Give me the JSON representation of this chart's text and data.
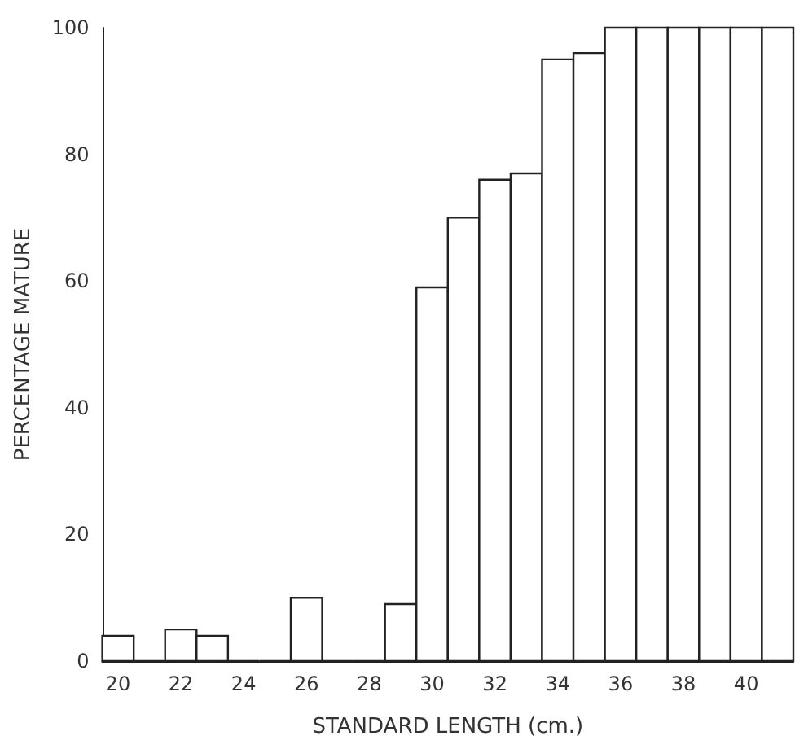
{
  "chart_data": {
    "type": "histogram",
    "xlabel": "STANDARD LENGTH (cm.)",
    "ylabel": "PERCENTAGE MATURE",
    "bins": [
      19.5,
      20.5,
      21.5,
      22.5,
      23.5,
      24.5,
      25.5,
      26.5,
      27.5,
      28.5,
      29.5,
      30.5,
      31.5,
      32.5,
      33.5,
      34.5,
      35.5,
      36.5,
      37.5,
      38.5,
      39.5,
      40.5,
      41.5
    ],
    "values": [
      4,
      0,
      5,
      4,
      0,
      0,
      10,
      0,
      0,
      9,
      59,
      70,
      76,
      77,
      95,
      96,
      100,
      100,
      100,
      100,
      100,
      100
    ],
    "xlim": [
      19.5,
      41.5
    ],
    "xticks": [
      20,
      22,
      24,
      26,
      28,
      30,
      32,
      34,
      36,
      38,
      40
    ],
    "ylim": [
      0,
      100
    ],
    "yticks": [
      0,
      20,
      40,
      60,
      80,
      100
    ],
    "grid": false
  }
}
